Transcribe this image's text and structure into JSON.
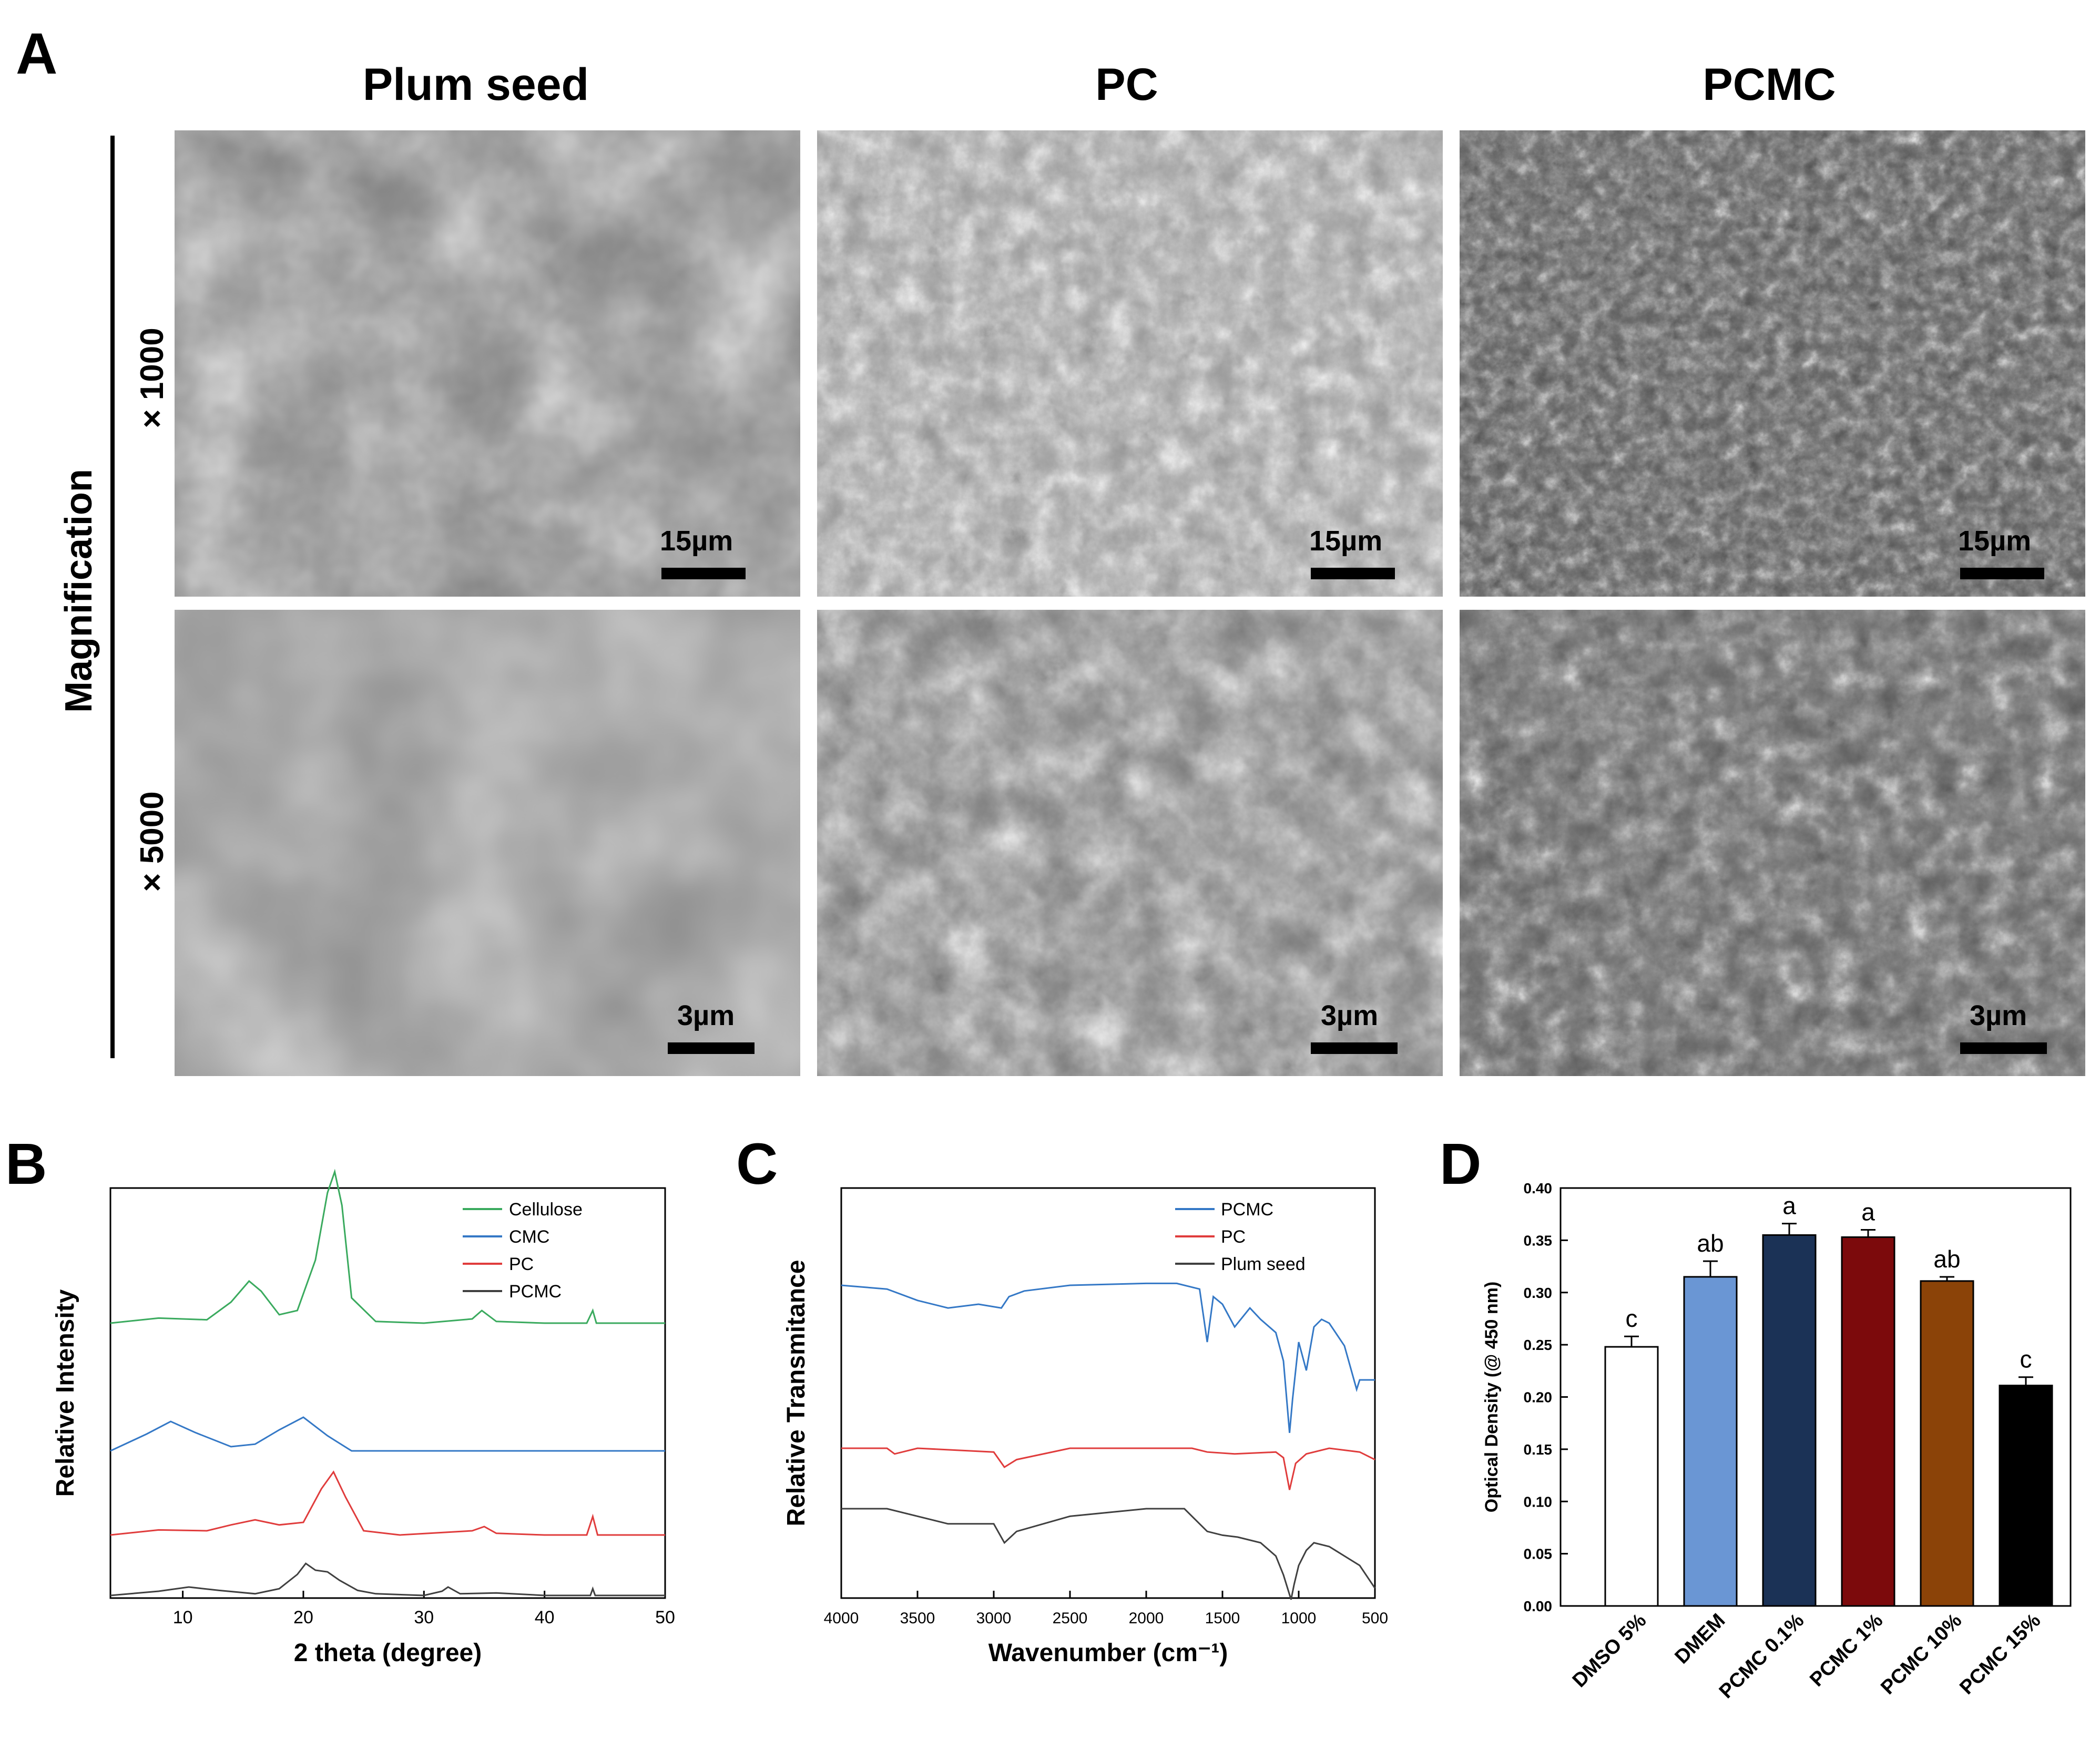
{
  "panel_A": {
    "letter": "A",
    "column_titles": [
      "Plum seed",
      "PC",
      "PCMC"
    ],
    "side_label": "Magnification",
    "row_labels": [
      "× 1000",
      "× 5000"
    ],
    "scale_bars": [
      [
        "15µm",
        "15µm",
        "15µm"
      ],
      [
        "3µm",
        "3µm",
        "3µm"
      ]
    ]
  },
  "panel_B": {
    "letter": "B"
  },
  "panel_C": {
    "letter": "C"
  },
  "panel_D": {
    "letter": "D"
  },
  "chart_data": [
    {
      "id": "B",
      "type": "line",
      "xlabel": "2 theta (degree)",
      "ylabel": "Relative Intensity",
      "xlim": [
        4,
        50
      ],
      "xticks": [
        10,
        20,
        30,
        40,
        50
      ],
      "legend": "top-right",
      "series": [
        {
          "name": "Cellulose",
          "color": "#3aaa5e",
          "x": [
            4,
            8,
            12,
            14,
            15.5,
            16.5,
            18,
            19.5,
            21,
            22,
            22.6,
            23.2,
            24,
            26,
            30,
            34,
            34.8,
            36,
            40,
            43.5,
            44,
            44.3,
            46,
            50
          ],
          "y": [
            0.8,
            0.86,
            0.84,
            1.05,
            1.3,
            1.18,
            0.9,
            0.95,
            1.55,
            2.35,
            2.6,
            2.2,
            1.1,
            0.82,
            0.8,
            0.85,
            0.95,
            0.82,
            0.8,
            0.8,
            0.95,
            0.8,
            0.8,
            0.8
          ]
        },
        {
          "name": "CMC",
          "color": "#3478c6",
          "x": [
            4,
            7,
            9,
            11,
            14,
            16,
            18,
            20,
            22,
            24,
            27,
            30,
            40,
            50
          ],
          "y": [
            0.0,
            0.2,
            0.35,
            0.22,
            0.05,
            0.08,
            0.25,
            0.4,
            0.18,
            0.0,
            0.0,
            0.0,
            0.0,
            0.0
          ]
        },
        {
          "name": "PC",
          "color": "#e03c3c",
          "x": [
            4,
            8,
            12,
            14,
            16,
            18,
            20,
            21.5,
            22.5,
            23.5,
            25,
            28,
            34,
            35,
            36,
            40,
            43.5,
            44,
            44.4,
            46,
            50
          ],
          "y": [
            0.0,
            0.06,
            0.05,
            0.12,
            0.18,
            0.12,
            0.15,
            0.55,
            0.75,
            0.45,
            0.05,
            0.0,
            0.05,
            0.1,
            0.02,
            0.0,
            0.0,
            0.22,
            0.0,
            0.0,
            0.0
          ]
        },
        {
          "name": "PCMC",
          "color": "#404040",
          "x": [
            4,
            8,
            10.5,
            13,
            16,
            18,
            19.5,
            20.2,
            21,
            22,
            23,
            24.5,
            26,
            30,
            31.5,
            32,
            33,
            36,
            40,
            43.8,
            44,
            44.2,
            50
          ],
          "y": [
            0.0,
            0.05,
            0.1,
            0.06,
            0.02,
            0.08,
            0.25,
            0.38,
            0.3,
            0.28,
            0.18,
            0.06,
            0.02,
            0.0,
            0.05,
            0.1,
            0.02,
            0.03,
            0.0,
            0.0,
            0.08,
            0.0,
            0.0
          ]
        }
      ]
    },
    {
      "id": "C",
      "type": "line",
      "xlabel": "Wavenumber (cm⁻¹)",
      "ylabel": "Relative Transmitance",
      "xlim": [
        4000,
        500
      ],
      "xticks": [
        4000,
        3500,
        3000,
        2500,
        2000,
        1500,
        1000,
        500
      ],
      "legend": "top-right",
      "series": [
        {
          "name": "PCMC",
          "color": "#3478c6",
          "x": [
            4000,
            3700,
            3500,
            3300,
            3100,
            2950,
            2900,
            2800,
            2500,
            2000,
            1800,
            1650,
            1600,
            1560,
            1500,
            1420,
            1320,
            1250,
            1150,
            1100,
            1060,
            1040,
            1000,
            950,
            900,
            850,
            800,
            700,
            620,
            600,
            500
          ],
          "y": [
            0.0,
            -0.02,
            -0.08,
            -0.12,
            -0.1,
            -0.12,
            -0.06,
            -0.03,
            0.0,
            0.01,
            0.01,
            -0.02,
            -0.3,
            -0.06,
            -0.1,
            -0.22,
            -0.12,
            -0.18,
            -0.25,
            -0.4,
            -0.78,
            -0.6,
            -0.3,
            -0.45,
            -0.22,
            -0.18,
            -0.2,
            -0.32,
            -0.55,
            -0.5,
            -0.5
          ]
        },
        {
          "name": "PC",
          "color": "#e03c3c",
          "x": [
            4000,
            3700,
            3650,
            3500,
            3000,
            2930,
            2850,
            2500,
            2000,
            1700,
            1600,
            1420,
            1150,
            1100,
            1060,
            1020,
            950,
            800,
            600,
            500
          ],
          "y": [
            0.0,
            0.0,
            -0.03,
            0.0,
            -0.02,
            -0.1,
            -0.06,
            0.0,
            0.0,
            0.0,
            -0.02,
            -0.03,
            -0.02,
            -0.05,
            -0.22,
            -0.08,
            -0.03,
            0.0,
            -0.02,
            -0.06
          ]
        },
        {
          "name": "Plum seed",
          "color": "#404040",
          "x": [
            4000,
            3700,
            3400,
            3300,
            3000,
            2930,
            2850,
            2500,
            2000,
            1750,
            1650,
            1600,
            1500,
            1400,
            1250,
            1150,
            1100,
            1050,
            1030,
            1000,
            950,
            900,
            800,
            700,
            600,
            500
          ],
          "y": [
            0.0,
            0.0,
            -0.06,
            -0.08,
            -0.08,
            -0.18,
            -0.12,
            -0.04,
            0.0,
            0.0,
            -0.08,
            -0.12,
            -0.14,
            -0.15,
            -0.18,
            -0.25,
            -0.35,
            -0.48,
            -0.4,
            -0.3,
            -0.22,
            -0.18,
            -0.2,
            -0.25,
            -0.3,
            -0.42
          ]
        }
      ]
    },
    {
      "id": "D",
      "type": "bar",
      "ylabel": "Optical Density (@ 450 nm)",
      "ylim": [
        0.0,
        0.4
      ],
      "yticks": [
        "0.00",
        "0.05",
        "0.10",
        "0.15",
        "0.20",
        "0.25",
        "0.30",
        "0.35",
        "0.40"
      ],
      "categories": [
        "DMSO 5%",
        "DMEM",
        "PCMC 0.1%",
        "PCMC 1%",
        "PCMC 10%",
        "PCMC 15%"
      ],
      "values": [
        0.248,
        0.315,
        0.355,
        0.353,
        0.311,
        0.211
      ],
      "errors": [
        0.01,
        0.015,
        0.011,
        0.007,
        0.004,
        0.008
      ],
      "letters": [
        "c",
        "ab",
        "a",
        "a",
        "ab",
        "c"
      ],
      "colors": [
        "#ffffff",
        "#6a96d4",
        "#1b3256",
        "#7c0a0c",
        "#8b4308",
        "#000000"
      ]
    }
  ]
}
